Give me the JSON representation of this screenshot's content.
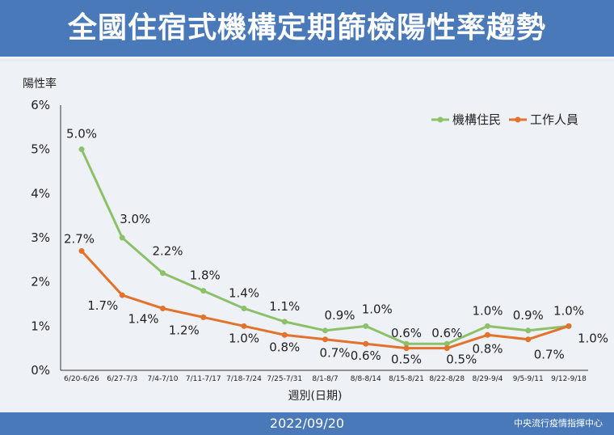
{
  "title": "全國住宿式機構定期篩檢陽性率趨勢",
  "footer": {
    "date": "2022/09/20",
    "org": "中央流行疫情指揮中心"
  },
  "colors": {
    "header": "#4a79ba",
    "residents": "#8cc16a",
    "staff": "#e2722c",
    "background": "#eef1f6"
  },
  "chart_data": {
    "type": "line",
    "ylabel": "陽性率",
    "xlabel": "週別(日期)",
    "ylim": [
      0,
      6
    ],
    "yticks": [
      "0%",
      "1%",
      "2%",
      "3%",
      "4%",
      "5%",
      "6%"
    ],
    "grid": false,
    "legend_position": "top-right",
    "categories": [
      "6/20-6/26",
      "6/27-7/3",
      "7/4-7/10",
      "7/11-7/17",
      "7/18-7/24",
      "7/25-7/31",
      "8/1-8/7",
      "8/8-8/14",
      "8/15-8/21",
      "8/22-8/28",
      "8/29-9/4",
      "9/5-9/11",
      "9/12-9/18"
    ],
    "series": [
      {
        "name": "機構住民",
        "color": "#8cc16a",
        "values": [
          5.0,
          3.0,
          2.2,
          1.8,
          1.4,
          1.1,
          0.9,
          1.0,
          0.6,
          0.6,
          1.0,
          0.9,
          1.0
        ],
        "labels": [
          "5.0%",
          "3.0%",
          "2.2%",
          "1.8%",
          "1.4%",
          "1.1%",
          "0.9%",
          "1.0%",
          "0.6%",
          "0.6%",
          "1.0%",
          "0.9%",
          "1.0%"
        ]
      },
      {
        "name": "工作人員",
        "color": "#e2722c",
        "values": [
          2.7,
          1.7,
          1.4,
          1.2,
          1.0,
          0.8,
          0.7,
          0.6,
          0.5,
          0.5,
          0.8,
          0.7,
          1.0
        ],
        "labels": [
          "2.7%",
          "1.7%",
          "1.4%",
          "1.2%",
          "1.0%",
          "0.8%",
          "0.7%",
          "0.6%",
          "0.5%",
          "0.5%",
          "0.8%",
          "0.7%",
          "1.0%"
        ]
      }
    ]
  }
}
